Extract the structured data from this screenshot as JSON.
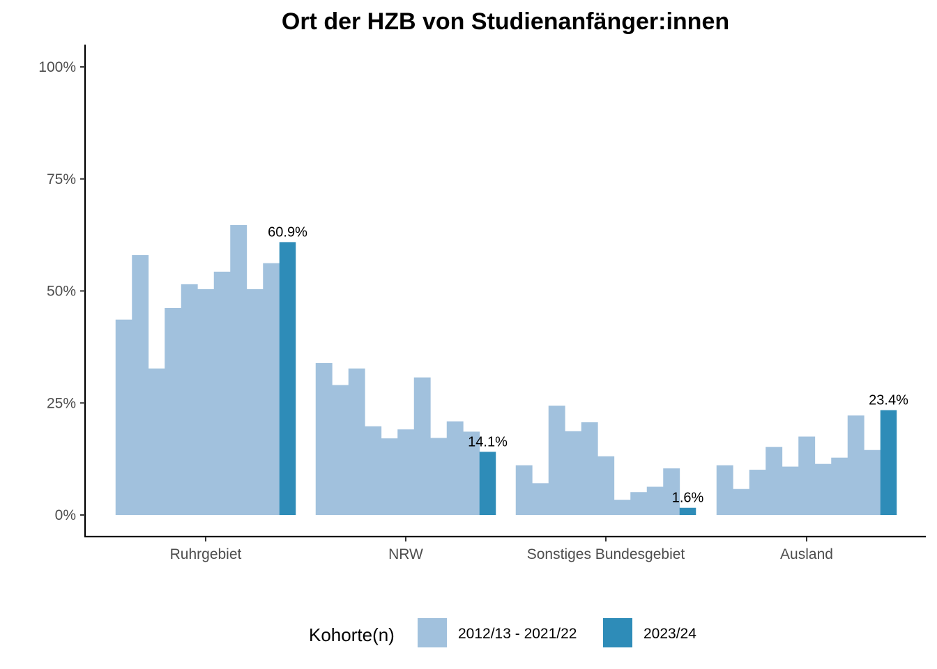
{
  "chart_data": {
    "type": "bar",
    "title": "Ort der HZB von Studienanfänger:innen",
    "xlabel": "",
    "ylabel": "",
    "ylim": [
      0,
      1
    ],
    "y_ticks": [
      0,
      0.25,
      0.5,
      0.75,
      1.0
    ],
    "y_tick_labels": [
      "0%",
      "25%",
      "50%",
      "75%",
      "100%"
    ],
    "categories": [
      "Ruhrgebiet",
      "NRW",
      "Sonstiges Bundesgebiet",
      "Ausland"
    ],
    "series": [
      {
        "name": "2012/13 - 2021/22",
        "color": "#a1c1dd",
        "values": [
          [
            0.436,
            0.58,
            0.327,
            0.462,
            0.515,
            0.504,
            0.543,
            0.647,
            0.504,
            0.562
          ],
          [
            0.339,
            0.29,
            0.327,
            0.198,
            0.171,
            0.191,
            0.307,
            0.172,
            0.209,
            0.186
          ],
          [
            0.111,
            0.071,
            0.244,
            0.187,
            0.207,
            0.131,
            0.034,
            0.051,
            0.063,
            0.104
          ],
          [
            0.111,
            0.058,
            0.101,
            0.152,
            0.108,
            0.175,
            0.114,
            0.128,
            0.222,
            0.145
          ]
        ]
      },
      {
        "name": "2023/24",
        "color": "#2e8cb8",
        "values": [
          0.609,
          0.141,
          0.016,
          0.234
        ],
        "labels": [
          "60.9%",
          "14.1%",
          "1.6%",
          "23.4%"
        ]
      }
    ],
    "legend": {
      "title": "Kohorte(n)",
      "position": "bottom"
    },
    "grid": false
  }
}
